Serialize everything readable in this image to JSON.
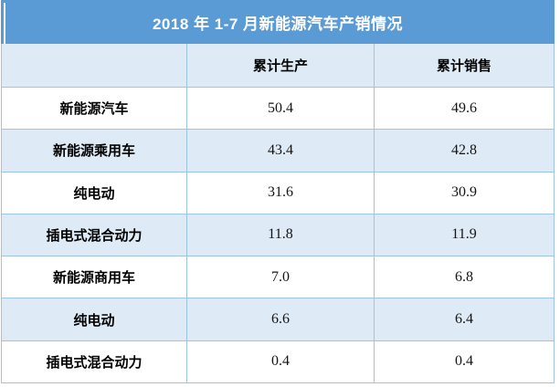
{
  "table": {
    "title": "2018 年 1-7 月新能源汽车产销情况",
    "columns": {
      "category": "",
      "production": "累计生产",
      "sales": "累计销售"
    },
    "rows": [
      {
        "label": "新能源汽车",
        "production": "50.4",
        "sales": "49.6"
      },
      {
        "label": "新能源乘用车",
        "production": "43.4",
        "sales": "42.8"
      },
      {
        "label": "纯电动",
        "production": "31.6",
        "sales": "30.9"
      },
      {
        "label": "插电式混合动力",
        "production": "11.8",
        "sales": "11.9"
      },
      {
        "label": "新能源商用车",
        "production": "7.0",
        "sales": "6.8"
      },
      {
        "label": "纯电动",
        "production": "6.6",
        "sales": "6.4"
      },
      {
        "label": "插电式混合动力",
        "production": "0.4",
        "sales": "0.4"
      }
    ],
    "colors": {
      "title_bg": "#5B9BD5",
      "title_text": "#FFFFFF",
      "band_bg": "#DEEAF6",
      "grid_line": "#9DC3E6",
      "text": "#000000"
    }
  },
  "chart_data": {
    "type": "table",
    "title": "2018 年 1-7 月新能源汽车产销情况",
    "columns": [
      "",
      "累计生产",
      "累计销售"
    ],
    "rows": [
      [
        "新能源汽车",
        50.4,
        49.6
      ],
      [
        "新能源乘用车",
        43.4,
        42.8
      ],
      [
        "纯电动",
        31.6,
        30.9
      ],
      [
        "插电式混合动力",
        11.8,
        11.9
      ],
      [
        "新能源商用车",
        7.0,
        6.8
      ],
      [
        "纯电动",
        6.6,
        6.4
      ],
      [
        "插电式混合动力",
        0.4,
        0.4
      ]
    ],
    "layout": {
      "title_position": "top-center",
      "banding": "alternating-rows",
      "grid": true
    }
  }
}
